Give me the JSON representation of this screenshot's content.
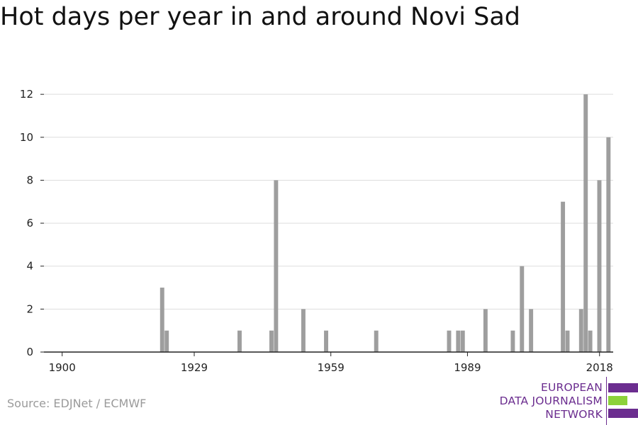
{
  "title": "Hot days per year in and around Novi Sad",
  "source": "Source: EDJNet / ECMWF",
  "logo": {
    "line1": "EUROPEAN",
    "line2": "DATA JOURNALISM",
    "line3": "NETWORK"
  },
  "colors": {
    "bar": "#9e9e9e",
    "grid": "#dddddd",
    "axis": "#222222",
    "logo_purple": "#6b2d8f",
    "logo_green": "#8cd13a"
  },
  "chart_data": {
    "type": "bar",
    "title": "Hot days per year in and around Novi Sad",
    "xlabel": "",
    "ylabel": "",
    "x_ticks": [
      1900,
      1929,
      1959,
      1989,
      2018
    ],
    "y_ticks": [
      0,
      2,
      4,
      6,
      8,
      10,
      12
    ],
    "xlim": [
      1896,
      2021
    ],
    "ylim": [
      0,
      12.5
    ],
    "grid": true,
    "series": [
      {
        "x": [
          1922,
          1923,
          1939,
          1946,
          1947,
          1953,
          1958,
          1969,
          1985,
          1987,
          1988,
          1993,
          1999,
          2001,
          2003,
          2010,
          2011,
          2014,
          2015,
          2016,
          2018,
          2020
        ],
        "values": [
          3,
          1,
          1,
          1,
          8,
          2,
          1,
          1,
          1,
          1,
          1,
          2,
          1,
          4,
          2,
          7,
          1,
          2,
          12,
          1,
          8,
          10
        ]
      }
    ]
  }
}
